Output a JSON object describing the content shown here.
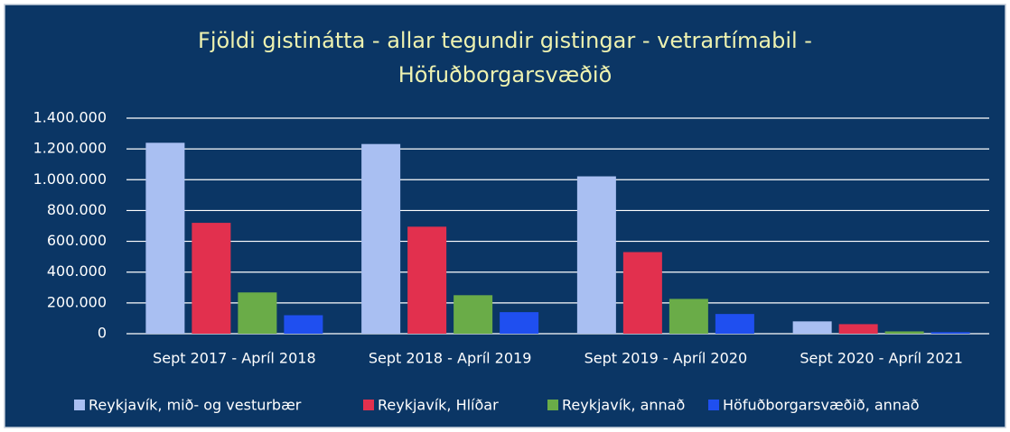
{
  "chart_data": {
    "type": "bar",
    "title": "Fjöldi gistinátta - allar tegundir gistingar - vetrartímabil - Höfuðborgarsvæðið",
    "categories": [
      "Sept 2017 - Apríl 2018",
      "Sept 2018 - Apríl 2019",
      "Sept 2019 - Apríl 2020",
      "Sept 2020 - Apríl 2021"
    ],
    "series": [
      {
        "name": "Reykjavík, mið- og vesturbær",
        "color": "#a9bff2",
        "values": [
          1240000,
          1232000,
          1022000,
          80000
        ]
      },
      {
        "name": "Reykjavík, Hlíðar",
        "color": "#e2304e",
        "values": [
          720000,
          695000,
          530000,
          62000
        ]
      },
      {
        "name": "Reykjavík, annað",
        "color": "#6aac48",
        "values": [
          268000,
          250000,
          226000,
          15000
        ]
      },
      {
        "name": "Höfuðborgarsvæðið, annað",
        "color": "#1f4ff0",
        "values": [
          120000,
          140000,
          128000,
          10000
        ]
      }
    ],
    "ylim": [
      0,
      1400000
    ],
    "yticks": [
      0,
      {
        "value": 200000,
        "label": "200.000"
      },
      {
        "value": 400000,
        "label": "400.000"
      },
      {
        "value": 600000,
        "label": "600.000"
      },
      {
        "value": 800000,
        "label": "800.000"
      },
      {
        "value": 1000000,
        "label": "1.000.000"
      },
      {
        "value": 1200000,
        "label": "1.200.000"
      },
      {
        "value": 1400000,
        "label": "1.400.000"
      }
    ],
    "grid": true,
    "legend": "bottom"
  }
}
